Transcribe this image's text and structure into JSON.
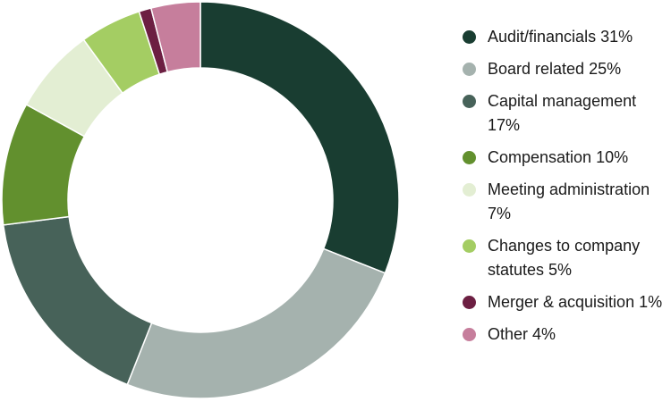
{
  "chart_data": {
    "type": "pie",
    "variant": "donut",
    "legend_position": "right",
    "slices": [
      {
        "label": "Audit/financials",
        "legend_text": "Audit/financials  31%",
        "value": 31,
        "color": "#193d31"
      },
      {
        "label": "Board related",
        "legend_text": "Board related 25%",
        "value": 25,
        "color": "#a5b2ae"
      },
      {
        "label": "Capital management",
        "legend_text": "Capital management 17%",
        "value": 17,
        "color": "#476259"
      },
      {
        "label": "Compensation",
        "legend_text": "Compensation  10%",
        "value": 10,
        "color": "#62902e"
      },
      {
        "label": "Meeting administration",
        "legend_text": "Meeting administration 7%",
        "value": 7,
        "color": "#e3eed3"
      },
      {
        "label": "Changes to company statutes",
        "legend_text": "Changes to company statutes 5%",
        "value": 5,
        "color": "#a4cd63"
      },
      {
        "label": "Merger & acquisition",
        "legend_text": "Merger & acquisition 1%",
        "value": 1,
        "color": "#6c1f42"
      },
      {
        "label": "Other",
        "legend_text": "Other 4%",
        "value": 4,
        "color": "#c67e9c"
      }
    ]
  }
}
